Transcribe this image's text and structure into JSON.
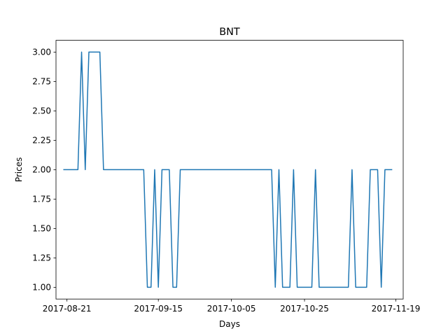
{
  "chart_data": {
    "type": "line",
    "title": "BNT",
    "xlabel": "Days",
    "ylabel": "Prices",
    "x_ticks": [
      "2017-08-21",
      "2017-09-15",
      "2017-10-05",
      "2017-10-25",
      "2017-11-19"
    ],
    "y_ticks": [
      "1.00",
      "1.25",
      "1.50",
      "1.75",
      "2.00",
      "2.25",
      "2.50",
      "2.75",
      "3.00"
    ],
    "xlim": [
      "2017-08-18",
      "2017-11-21"
    ],
    "ylim": [
      0.9,
      3.1
    ],
    "grid": false,
    "series": [
      {
        "color": "#1f77b4",
        "points": [
          [
            "2017-08-20",
            2
          ],
          [
            "2017-08-24",
            2
          ],
          [
            "2017-08-25",
            3
          ],
          [
            "2017-08-26",
            2
          ],
          [
            "2017-08-27",
            3
          ],
          [
            "2017-08-30",
            3
          ],
          [
            "2017-08-31",
            2
          ],
          [
            "2017-09-11",
            2
          ],
          [
            "2017-09-12",
            1
          ],
          [
            "2017-09-13",
            1
          ],
          [
            "2017-09-14",
            2
          ],
          [
            "2017-09-15",
            1
          ],
          [
            "2017-09-16",
            2
          ],
          [
            "2017-09-18",
            2
          ],
          [
            "2017-09-19",
            1
          ],
          [
            "2017-09-20",
            1
          ],
          [
            "2017-09-21",
            2
          ],
          [
            "2017-10-16",
            2
          ],
          [
            "2017-10-17",
            1
          ],
          [
            "2017-10-18",
            2
          ],
          [
            "2017-10-19",
            1
          ],
          [
            "2017-10-21",
            1
          ],
          [
            "2017-10-22",
            2
          ],
          [
            "2017-10-23",
            1
          ],
          [
            "2017-10-27",
            1
          ],
          [
            "2017-10-28",
            2
          ],
          [
            "2017-10-29",
            1
          ],
          [
            "2017-11-06",
            1
          ],
          [
            "2017-11-07",
            2
          ],
          [
            "2017-11-08",
            1
          ],
          [
            "2017-11-11",
            1
          ],
          [
            "2017-11-12",
            2
          ],
          [
            "2017-11-14",
            2
          ],
          [
            "2017-11-15",
            1
          ],
          [
            "2017-11-16",
            2
          ],
          [
            "2017-11-18",
            2
          ]
        ]
      }
    ]
  }
}
